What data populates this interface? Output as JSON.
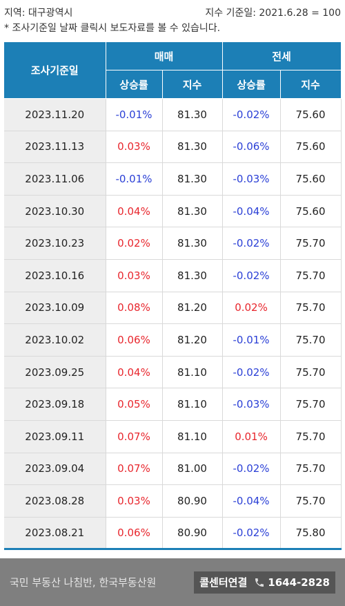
{
  "meta": {
    "region": "지역: 대구광역시",
    "base": "지수 기준일: 2021.6.28 = 100",
    "note": "* 조사기준일 날짜 클릭시 보도자료를 볼 수 있습니다."
  },
  "table": {
    "date_header": "조사기준일",
    "sale_header": "매매",
    "jeonse_header": "전세",
    "rate_header": "상승률",
    "index_header": "지수",
    "rows": [
      {
        "date": "2023.11.20",
        "sale_rate": "-0.01%",
        "sale_index": "81.30",
        "jeonse_rate": "-0.02%",
        "jeonse_index": "75.60"
      },
      {
        "date": "2023.11.13",
        "sale_rate": "0.03%",
        "sale_index": "81.30",
        "jeonse_rate": "-0.06%",
        "jeonse_index": "75.60"
      },
      {
        "date": "2023.11.06",
        "sale_rate": "-0.01%",
        "sale_index": "81.30",
        "jeonse_rate": "-0.03%",
        "jeonse_index": "75.60"
      },
      {
        "date": "2023.10.30",
        "sale_rate": "0.04%",
        "sale_index": "81.30",
        "jeonse_rate": "-0.04%",
        "jeonse_index": "75.60"
      },
      {
        "date": "2023.10.23",
        "sale_rate": "0.02%",
        "sale_index": "81.30",
        "jeonse_rate": "-0.02%",
        "jeonse_index": "75.70"
      },
      {
        "date": "2023.10.16",
        "sale_rate": "0.03%",
        "sale_index": "81.30",
        "jeonse_rate": "-0.02%",
        "jeonse_index": "75.70"
      },
      {
        "date": "2023.10.09",
        "sale_rate": "0.08%",
        "sale_index": "81.20",
        "jeonse_rate": "0.02%",
        "jeonse_index": "75.70"
      },
      {
        "date": "2023.10.02",
        "sale_rate": "0.06%",
        "sale_index": "81.20",
        "jeonse_rate": "-0.01%",
        "jeonse_index": "75.70"
      },
      {
        "date": "2023.09.25",
        "sale_rate": "0.04%",
        "sale_index": "81.10",
        "jeonse_rate": "-0.02%",
        "jeonse_index": "75.70"
      },
      {
        "date": "2023.09.18",
        "sale_rate": "0.05%",
        "sale_index": "81.10",
        "jeonse_rate": "-0.03%",
        "jeonse_index": "75.70"
      },
      {
        "date": "2023.09.11",
        "sale_rate": "0.07%",
        "sale_index": "81.10",
        "jeonse_rate": "0.01%",
        "jeonse_index": "75.70"
      },
      {
        "date": "2023.09.04",
        "sale_rate": "0.07%",
        "sale_index": "81.00",
        "jeonse_rate": "-0.02%",
        "jeonse_index": "75.70"
      },
      {
        "date": "2023.08.28",
        "sale_rate": "0.03%",
        "sale_index": "80.90",
        "jeonse_rate": "-0.04%",
        "jeonse_index": "75.70"
      },
      {
        "date": "2023.08.21",
        "sale_rate": "0.06%",
        "sale_index": "80.90",
        "jeonse_rate": "-0.02%",
        "jeonse_index": "75.80"
      }
    ]
  },
  "footer": {
    "title": "국민 부동산 나침반, 한국부동산원",
    "call_label": "콜센터연결",
    "phone": "1644-2828",
    "phone_icon": "phone-icon"
  },
  "colors": {
    "header_bg": "#1c7fb6",
    "up": "#e8262d",
    "down": "#2a3fd6",
    "date_bg": "#eeeeee",
    "footer_bg": "#7f7f7f"
  }
}
